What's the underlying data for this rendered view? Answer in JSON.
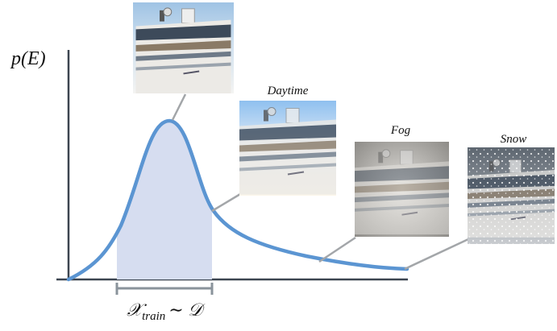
{
  "axis": {
    "y_label": "p(E)"
  },
  "images": [
    {
      "label": null
    },
    {
      "label": "Daytime"
    },
    {
      "label": "Fog"
    },
    {
      "label": "Snow"
    }
  ],
  "train_range": {
    "symbol": "𝒳",
    "subscript": "train",
    "relation": "∼ 𝒟"
  }
}
